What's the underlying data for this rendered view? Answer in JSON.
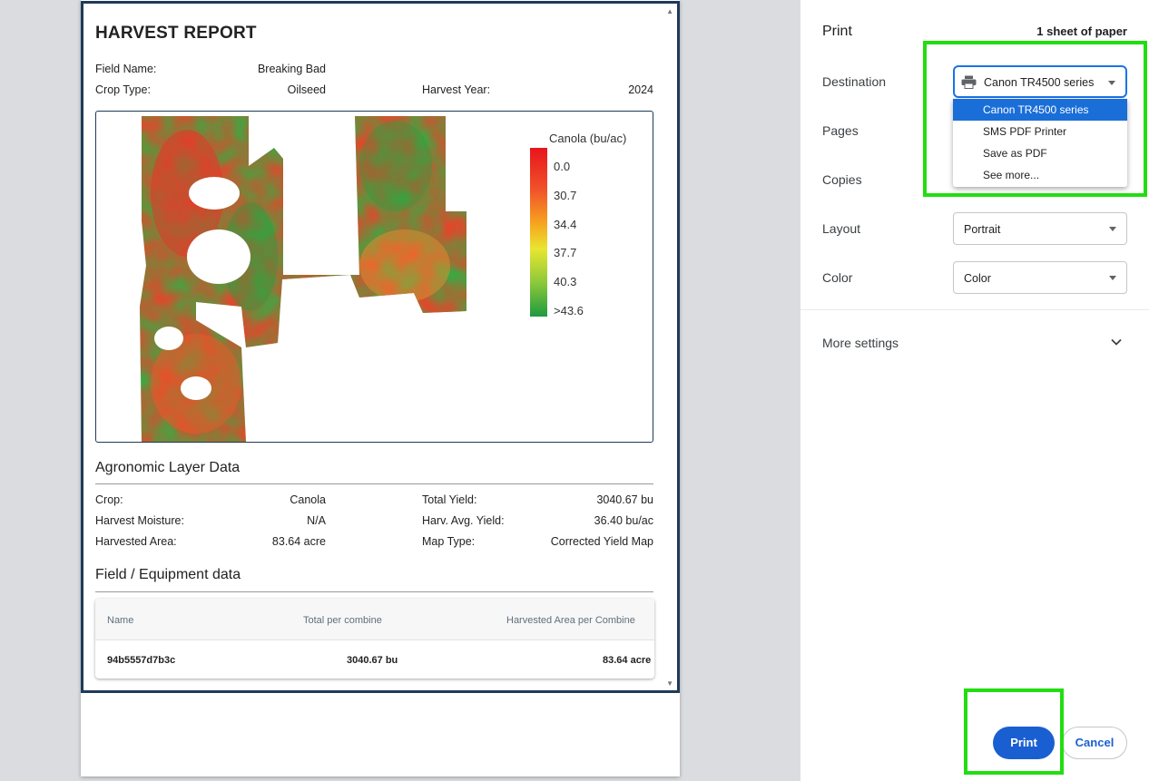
{
  "report": {
    "title": "HARVEST REPORT",
    "field_name_label": "Field Name:",
    "field_name_value": "Breaking Bad",
    "crop_type_label": "Crop Type:",
    "crop_type_value": "Oilseed",
    "harvest_year_label": "Harvest Year:",
    "harvest_year_value": "2024",
    "legend": {
      "title": "Canola (bu/ac)",
      "labels": [
        "0.0",
        "30.7",
        "34.4",
        "37.7",
        "40.3",
        ">43.6"
      ],
      "colors": [
        "#e8141c",
        "#f0532a",
        "#f7a51f",
        "#e8e630",
        "#8cc83a",
        "#1e9a40"
      ]
    },
    "agronomic": {
      "title": "Agronomic Layer Data",
      "crop_label": "Crop:",
      "crop_value": "Canola",
      "moisture_label": "Harvest Moisture:",
      "moisture_value": "N/A",
      "area_label": "Harvested Area:",
      "area_value": "83.64 acre",
      "total_yield_label": "Total Yield:",
      "total_yield_value": "3040.67 bu",
      "avg_yield_label": "Harv. Avg. Yield:",
      "avg_yield_value": "36.40 bu/ac",
      "map_type_label": "Map Type:",
      "map_type_value": "Corrected Yield Map"
    },
    "equipment": {
      "title": "Field / Equipment data",
      "headers": [
        "Name",
        "Total per combine",
        "Harvested Area per Combine"
      ],
      "rows": [
        [
          "94b5557d7b3c",
          "3040.67 bu",
          "83.64 acre"
        ]
      ]
    }
  },
  "settings": {
    "title": "Print",
    "sheet_count": "1 sheet of paper",
    "destination_label": "Destination",
    "destination_value": "Canon TR4500 series",
    "destination_options": [
      "Canon TR4500 series",
      "SMS PDF Printer",
      "Save as PDF",
      "See more..."
    ],
    "pages_label": "Pages",
    "copies_label": "Copies",
    "layout_label": "Layout",
    "layout_value": "Portrait",
    "color_label": "Color",
    "color_value": "Color",
    "more_settings_label": "More settings",
    "print_button": "Print",
    "cancel_button": "Cancel"
  },
  "icons": {
    "printer": "printer-icon",
    "chevron": "chevron-down-icon",
    "scroll_up": "scroll-up-arrow-icon",
    "scroll_down": "scroll-down-arrow-icon"
  },
  "highlight_color": "#22dd11"
}
